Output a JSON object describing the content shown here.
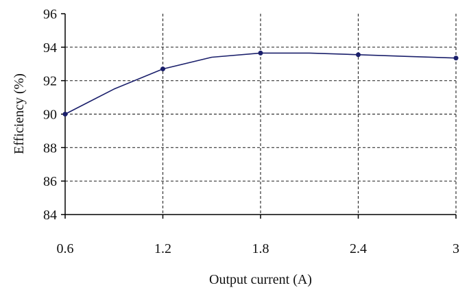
{
  "chart_data": {
    "type": "line",
    "xlabel": "Output current (A)",
    "ylabel": "Efficiency (%)",
    "x_ticks": [
      "0.6",
      "1.2",
      "1.8",
      "2.4",
      "3"
    ],
    "y_ticks": [
      "84",
      "86",
      "88",
      "90",
      "92",
      "94",
      "96"
    ],
    "xlim": [
      0.6,
      3.0
    ],
    "ylim": [
      84,
      96
    ],
    "grid": true,
    "series": [
      {
        "line_points": [
          {
            "x": 0.6,
            "y": 90.0
          },
          {
            "x": 0.9,
            "y": 91.5
          },
          {
            "x": 1.2,
            "y": 92.7
          },
          {
            "x": 1.5,
            "y": 93.4
          },
          {
            "x": 1.8,
            "y": 93.65
          },
          {
            "x": 2.1,
            "y": 93.65
          },
          {
            "x": 2.4,
            "y": 93.55
          },
          {
            "x": 2.7,
            "y": 93.45
          },
          {
            "x": 3.0,
            "y": 93.35
          }
        ],
        "markers": [
          {
            "x": 0.6,
            "y": 90.0
          },
          {
            "x": 1.2,
            "y": 92.7
          },
          {
            "x": 1.8,
            "y": 93.65
          },
          {
            "x": 2.4,
            "y": 93.55
          },
          {
            "x": 3.0,
            "y": 93.35
          }
        ]
      }
    ],
    "colors": {
      "line": "#1a1f6b",
      "marker": "#1a1f6b",
      "grid": "#333333",
      "axis": "#000000"
    }
  }
}
